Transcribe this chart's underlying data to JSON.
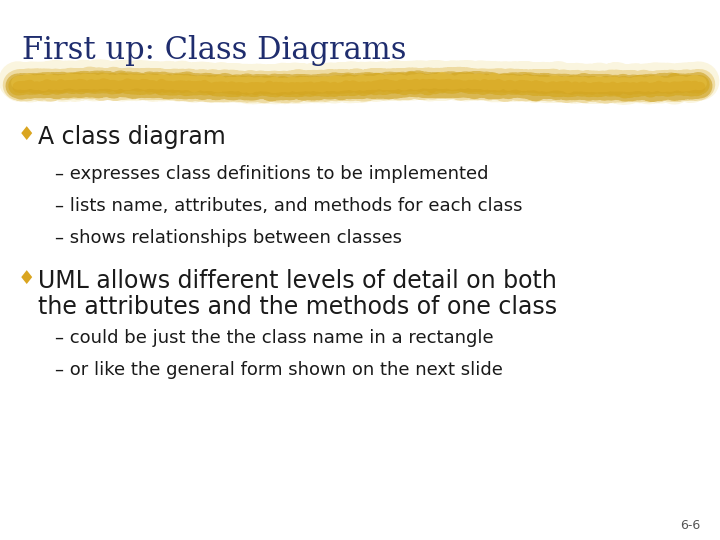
{
  "background_color": "#FFFFFF",
  "title": "First up: Class Diagrams",
  "title_color": "#1F2D6E",
  "title_fontsize": 22,
  "title_font": "serif",
  "underline_color": "#D4A017",
  "underline_color2": "#E8C040",
  "bullet_color": "#DAA520",
  "bullet_char": "♦",
  "text_color": "#1a1a1a",
  "bullet1_text": "A class diagram",
  "bullet1_fontsize": 17,
  "sub1_items": [
    "expresses class definitions to be implemented",
    "lists name, attributes, and methods for each class",
    "shows relationships between classes"
  ],
  "sub1_fontsize": 13,
  "bullet2_line1": "UML allows different levels of detail on both",
  "bullet2_line2": "the attributes and the methods of one class",
  "bullet2_fontsize": 17,
  "sub2_items": [
    "could be just the the class name in a rectangle",
    "or like the general form shown on the next slide"
  ],
  "sub2_fontsize": 13,
  "page_number": "6-6",
  "page_num_fontsize": 9,
  "page_num_color": "#555555"
}
